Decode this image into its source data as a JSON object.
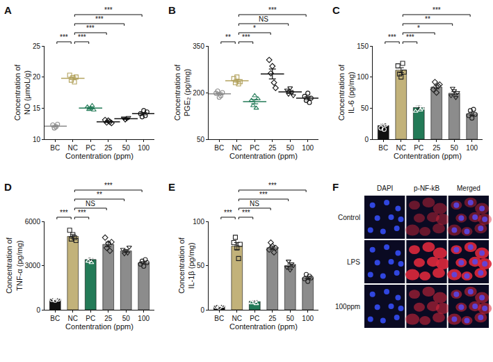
{
  "chart_data": [
    {
      "panel": "A",
      "type": "scatter",
      "x_label": "Contentration (ppm)",
      "y_label": "Concentration of NO (μmoL/g)",
      "categories": [
        "BC",
        "NC",
        "PC",
        "25",
        "50",
        "100"
      ],
      "values": [
        12.1,
        19.8,
        15.0,
        12.8,
        13.3,
        14.1
      ],
      "errors": [
        0.14,
        0.2,
        0.13,
        0.09,
        0.09,
        0.18
      ],
      "points": [
        [
          12.3,
          11.8,
          12.0,
          12.4
        ],
        [
          20.3,
          19.5,
          19.9,
          19.2,
          20.0
        ],
        [
          15.2,
          14.8,
          15.0,
          15.4,
          14.7
        ],
        [
          13.1,
          12.7,
          13.0,
          12.8,
          12.6
        ],
        [
          13.4,
          13.1,
          13.3,
          13.5
        ],
        [
          14.1,
          13.6,
          14.6,
          13.8,
          14.4
        ]
      ],
      "colors": [
        "#8c8c8c",
        "#b3a35f",
        "#237a57",
        "#111111",
        "#111111",
        "#111111"
      ],
      "ylim": [
        10,
        25
      ],
      "yticks": [
        10,
        15,
        20,
        25
      ],
      "grid": false,
      "comparisons": [
        {
          "from": "BC",
          "to": "NC",
          "label": "***"
        },
        {
          "from": "NC",
          "to": "PC",
          "label": "***"
        },
        {
          "from": "NC",
          "to": "25",
          "label": "***"
        },
        {
          "from": "NC",
          "to": "50",
          "label": "***"
        },
        {
          "from": "NC",
          "to": "100",
          "label": "***"
        }
      ]
    },
    {
      "panel": "B",
      "type": "scatter",
      "x_label": "Contentration (ppm)",
      "y_label": "Concentration of PGE₂ (pg/mg)",
      "categories": [
        "BC",
        "NC",
        "PC",
        "25",
        "50",
        "100"
      ],
      "values": [
        196,
        238,
        171,
        260,
        202,
        182
      ],
      "errors": [
        3.5,
        4,
        7,
        16,
        4.5,
        5
      ],
      "points": [
        [
          198,
          205,
          185,
          190,
          200
        ],
        [
          245,
          232,
          250,
          228,
          235
        ],
        [
          175,
          158,
          190,
          150,
          180
        ],
        [
          305,
          262,
          285,
          232,
          215
        ],
        [
          208,
          195,
          215,
          200,
          190
        ],
        [
          188,
          175,
          198,
          168,
          182
        ]
      ],
      "colors": [
        "#8c8c8c",
        "#b3a35f",
        "#237a57",
        "#111111",
        "#111111",
        "#111111"
      ],
      "ylim": [
        50,
        350
      ],
      "yticks": [
        50,
        200,
        350
      ],
      "grid": false,
      "comparisons": [
        {
          "from": "BC",
          "to": "NC",
          "label": "**"
        },
        {
          "from": "NC",
          "to": "PC",
          "label": "***"
        },
        {
          "from": "NC",
          "to": "25",
          "label": "*"
        },
        {
          "from": "NC",
          "to": "50",
          "label": "NS"
        },
        {
          "from": "NC",
          "to": "100",
          "label": "***"
        }
      ]
    },
    {
      "panel": "C",
      "type": "bar",
      "x_label": "Contentration (ppm)",
      "y_label": "Concentration of IL-6 (pg/mg)",
      "categories": [
        "BC",
        "NC",
        "PC",
        "25",
        "50",
        "100"
      ],
      "values": [
        22,
        111,
        51,
        84,
        74,
        41
      ],
      "errors": [
        2.7,
        4,
        2.7,
        3,
        2.7,
        2.6
      ],
      "points": [
        [
          18,
          28,
          16,
          24
        ],
        [
          118,
          105,
          100,
          122,
          108
        ],
        [
          45,
          60,
          55,
          47,
          50
        ],
        [
          80,
          92,
          75,
          86,
          88
        ],
        [
          70,
          82,
          78,
          67,
          75
        ],
        [
          38,
          46,
          34,
          48,
          40
        ]
      ],
      "colors": [
        "#111111",
        "#c2b27a",
        "#237a57",
        "#8c8c8c",
        "#8c8c8c",
        "#8c8c8c"
      ],
      "ylim": [
        0,
        150
      ],
      "yticks": [
        0,
        50,
        100,
        150
      ],
      "grid": false,
      "comparisons": [
        {
          "from": "BC",
          "to": "NC",
          "label": "***"
        },
        {
          "from": "NC",
          "to": "PC",
          "label": "***"
        },
        {
          "from": "NC",
          "to": "25",
          "label": "*"
        },
        {
          "from": "NC",
          "to": "50",
          "label": "**"
        },
        {
          "from": "NC",
          "to": "100",
          "label": "***"
        }
      ]
    },
    {
      "panel": "D",
      "type": "bar",
      "x_label": "Contentration (ppm)",
      "y_label": "Concentration of TNF-α (pg/mg)",
      "categories": [
        "BC",
        "NC",
        "PC",
        "25",
        "50",
        "100"
      ],
      "values": [
        730,
        4980,
        3410,
        4440,
        4000,
        3190
      ],
      "errors": [
        27,
        125,
        95,
        160,
        80,
        80
      ],
      "points": [
        [
          700,
          800,
          650,
          780,
          720
        ],
        [
          5400,
          4800,
          5100,
          4900,
          4700
        ],
        [
          3300,
          3550,
          3200,
          3600
        ],
        [
          4900,
          4200,
          4500,
          4000,
          4600
        ],
        [
          4100,
          3800,
          4000,
          3850,
          4250
        ],
        [
          3100,
          3300,
          2950,
          3400,
          3200
        ]
      ],
      "colors": [
        "#111111",
        "#c2b27a",
        "#237a57",
        "#8c8c8c",
        "#8c8c8c",
        "#8c8c8c"
      ],
      "ylim": [
        0,
        6000
      ],
      "yticks": [
        0,
        3000,
        6000
      ],
      "grid": false,
      "comparisons": [
        {
          "from": "BC",
          "to": "NC",
          "label": "***"
        },
        {
          "from": "NC",
          "to": "PC",
          "label": "***"
        },
        {
          "from": "NC",
          "to": "25",
          "label": "NS"
        },
        {
          "from": "NC",
          "to": "50",
          "label": "**"
        },
        {
          "from": "NC",
          "to": "100",
          "label": "***"
        }
      ]
    },
    {
      "panel": "E",
      "type": "bar",
      "x_label": "Contentration (ppm)",
      "y_label": "Concentration of IL-1β (pg/mg)",
      "categories": [
        "BC",
        "NC",
        "PC",
        "25",
        "50",
        "100"
      ],
      "values": [
        4.6,
        72,
        9.6,
        70.2,
        50,
        36.2
      ],
      "errors": [
        0.5,
        4,
        0.9,
        1.9,
        1.7,
        1.3
      ],
      "points": [
        [
          4,
          5,
          3,
          6,
          5
        ],
        [
          76,
          82,
          70,
          58,
          74
        ],
        [
          8,
          12,
          10,
          7,
          11
        ],
        [
          68,
          76,
          72,
          65,
          70
        ],
        [
          48,
          55,
          45,
          52,
          50
        ],
        [
          35,
          40,
          32,
          38,
          36
        ]
      ],
      "colors": [
        "#111111",
        "#c2b27a",
        "#237a57",
        "#8c8c8c",
        "#8c8c8c",
        "#8c8c8c"
      ],
      "ylim": [
        0,
        100
      ],
      "yticks": [
        0,
        50,
        100
      ],
      "grid": false,
      "comparisons": [
        {
          "from": "BC",
          "to": "NC",
          "label": "***"
        },
        {
          "from": "NC",
          "to": "PC",
          "label": "***"
        },
        {
          "from": "NC",
          "to": "25",
          "label": "NS"
        },
        {
          "from": "NC",
          "to": "50",
          "label": "***"
        },
        {
          "from": "NC",
          "to": "100",
          "label": "***"
        }
      ]
    }
  ],
  "image_panel": {
    "panel": "F",
    "columns": [
      "DAPI",
      "p-NF-kB",
      "Merged"
    ],
    "rows": [
      "Control",
      "LPS",
      "100ppm"
    ]
  }
}
